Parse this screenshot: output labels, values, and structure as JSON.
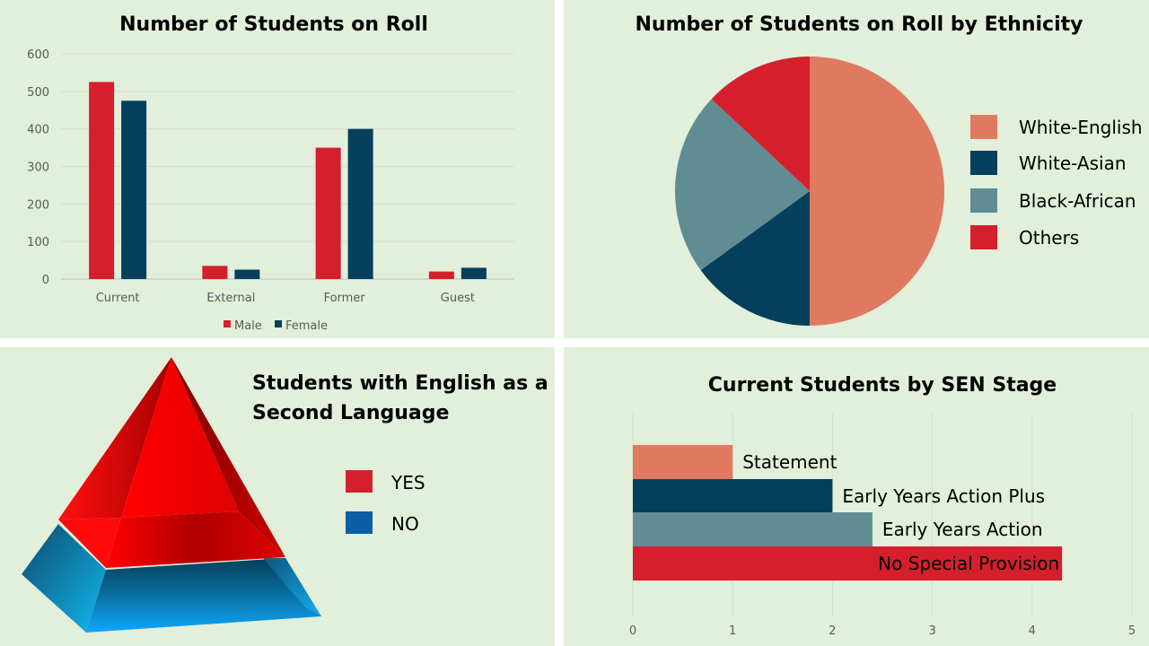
{
  "colors": {
    "background": "#e2efda",
    "red": "#d61f2c",
    "navy": "#043f5d",
    "salmon": "#df7a60",
    "teal": "#5f8d93",
    "blue": "#0b5ea6"
  },
  "chart_data": [
    {
      "type": "bar",
      "title": "Number of Students on Roll",
      "categories": [
        "Current",
        "External",
        "Former",
        "Guest"
      ],
      "series": [
        {
          "name": "Male",
          "values": [
            525,
            35,
            350,
            20
          ],
          "color": "#d61f2c"
        },
        {
          "name": "Female",
          "values": [
            475,
            25,
            400,
            30
          ],
          "color": "#043f5d"
        }
      ],
      "ylim": [
        0,
        600
      ],
      "yticks": [
        0,
        100,
        200,
        300,
        400,
        500,
        600
      ],
      "grid": true,
      "legend": "bottom"
    },
    {
      "type": "pie",
      "title": "Number of Students on Roll by Ethnicity",
      "labels": [
        "White-English",
        "White-Asian",
        "Black-African",
        "Others"
      ],
      "values": [
        50,
        15,
        22,
        13
      ],
      "colors": [
        "#df7a60",
        "#043f5d",
        "#5f8d93",
        "#d61f2c"
      ],
      "legend": "right"
    },
    {
      "type": "pyramid",
      "title_lines": [
        "Students with English as a",
        "Second Language"
      ],
      "labels": [
        "YES",
        "NO"
      ],
      "colors": [
        "#d61f2c",
        "#0b5ea6"
      ],
      "legend": "right"
    },
    {
      "type": "bar",
      "orientation": "horizontal",
      "title": "Current Students by SEN Stage",
      "categories": [
        "Statement",
        "Early Years Action Plus",
        "Early Years Action",
        "No Special Provision"
      ],
      "values": [
        1,
        2,
        2.4,
        4.3
      ],
      "colors": [
        "#df7a60",
        "#043f5d",
        "#5f8d93",
        "#d61f2c"
      ],
      "xlim": [
        0,
        5
      ],
      "xticks": [
        0,
        1,
        2,
        3,
        4,
        5
      ],
      "grid": true
    }
  ]
}
